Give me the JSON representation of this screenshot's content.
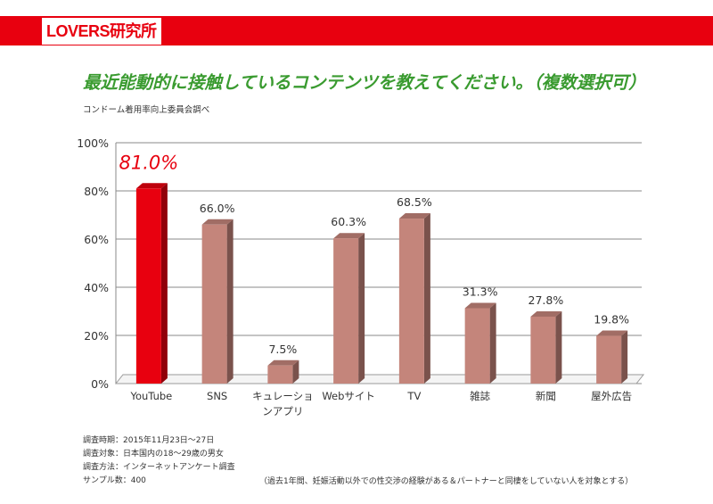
{
  "header": {
    "logo_text": "LOVERS研究所",
    "accent_color": "#e8000f"
  },
  "title": "最近能動的に接触しているコンテンツを教えてください。（複数選択可）",
  "source": "コンドーム着用率向上委員会調べ",
  "chart_data": {
    "type": "bar",
    "categories": [
      "YouTube",
      "SNS",
      "キュレーションアプリ",
      "Webサイト",
      "TV",
      "雑誌",
      "新聞",
      "屋外広告"
    ],
    "category_label_lines": [
      [
        "YouTube"
      ],
      [
        "SNS"
      ],
      [
        "キュレーショ",
        "ンアプリ"
      ],
      [
        "Webサイト"
      ],
      [
        "TV"
      ],
      [
        "雑誌"
      ],
      [
        "新聞"
      ],
      [
        "屋外広告"
      ]
    ],
    "values": [
      81.0,
      66.0,
      7.5,
      60.3,
      68.5,
      31.3,
      27.8,
      19.8
    ],
    "value_labels": [
      "81.0%",
      "66.0%",
      "7.5%",
      "60.3%",
      "68.5%",
      "31.3%",
      "27.8%",
      "19.8%"
    ],
    "ylim": [
      0,
      100
    ],
    "yticks": [
      "0%",
      "20%",
      "40%",
      "60%",
      "80%",
      "100%"
    ],
    "highlight_index": 0,
    "highlight_color": "#e8000f",
    "bar_color": "#c4857b",
    "grid": true
  },
  "footer": {
    "lines": [
      "調査時期：2015年11月23日～27日",
      "調査対象：日本国内の18～29歳の男女",
      "調査方法：インターネットアンケート調査",
      "サンプル数：400"
    ],
    "note": "（過去1年間、妊娠活動以外での性交渉の経験がある＆パートナーと同棲をしていない人を対象とする）"
  }
}
